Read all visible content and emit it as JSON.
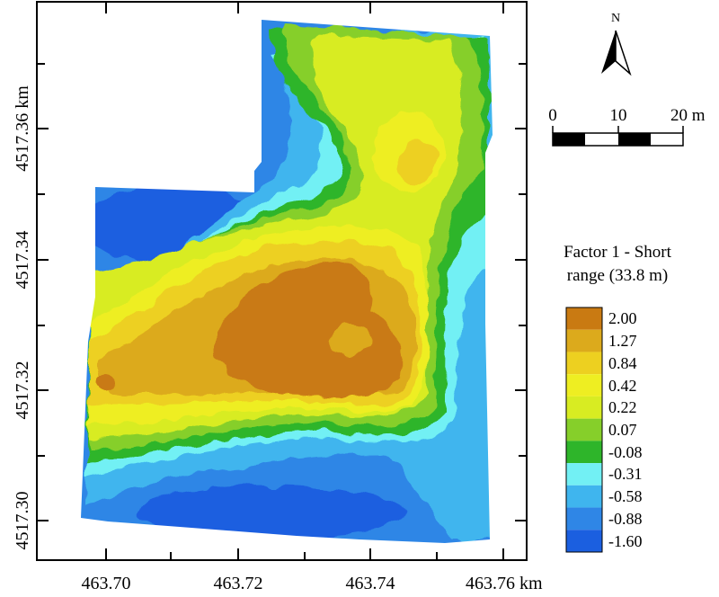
{
  "map": {
    "x_ticks": [
      "463.70",
      "463.72",
      "463.74",
      "463.76 km"
    ],
    "y_ticks": [
      "4517.30",
      "4517.32",
      "4517.34",
      "4517.36 km"
    ]
  },
  "north_arrow": {
    "label": "N"
  },
  "scale_bar": {
    "labels": [
      "0",
      "10",
      "20 m"
    ]
  },
  "legend": {
    "title_line1": "Factor 1 - Short",
    "title_line2": "range (33.8 m)",
    "classes": [
      {
        "label": "2.00",
        "color": "#c97a12"
      },
      {
        "label": "1.27",
        "color": "#dcaa1c"
      },
      {
        "label": "0.84",
        "color": "#edd020"
      },
      {
        "label": "0.42",
        "color": "#eeee22"
      },
      {
        "label": "0.22",
        "color": "#d8ec22"
      },
      {
        "label": "0.07",
        "color": "#86cf2a"
      },
      {
        "label": "-0.08",
        "color": "#2eb52a"
      },
      {
        "label": "-0.31",
        "color": "#72f0f4"
      },
      {
        "label": "-0.58",
        "color": "#3fb5ee"
      },
      {
        "label": "-0.88",
        "color": "#2f86e6"
      },
      {
        "label": "-1.60",
        "color": "#1b5fe0"
      }
    ]
  }
}
